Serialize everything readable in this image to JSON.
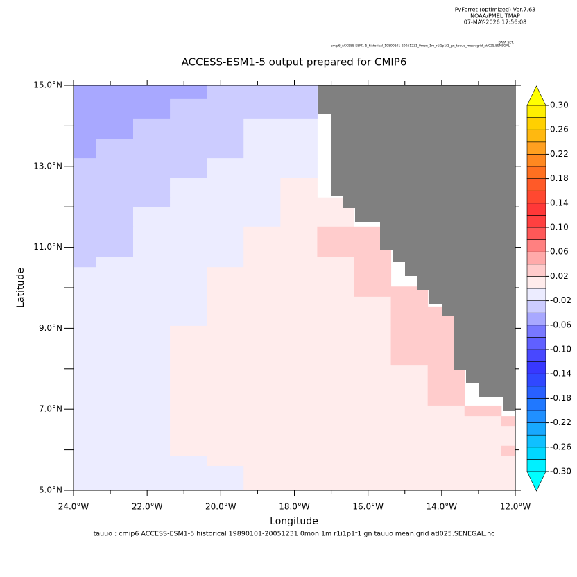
{
  "header": {
    "software": "PyFerret (optimized) Ver.7.63",
    "org": "NOAA/PMEL TMAP",
    "date": "07-MAY-2026 17:56:08",
    "dataset_label": "DATA SET:",
    "dataset": "cmip6_ACCESS-ESM1-5_historical_19890101-20051231_0mon_1m_r1i1p1f1_gn_tauuo_mean.grid_atl025.SENEGAL"
  },
  "chart_data": {
    "type": "heatmap",
    "title": "ACCESS-ESM1-5 output prepared for CMIP6",
    "xlabel": "Longitude",
    "ylabel": "Latitude",
    "footnote": "tauuo : cmip6 ACCESS-ESM1-5 historical 19890101-20051231 0mon 1m r1i1p1f1 gn tauuo mean.grid atl025.SENEGAL.nc",
    "xlim": [
      -24,
      -12
    ],
    "ylim": [
      5,
      15
    ],
    "xticks": [
      {
        "value": -24,
        "label": "24.0°W"
      },
      {
        "value": -22,
        "label": "22.0°W"
      },
      {
        "value": -20,
        "label": "20.0°W"
      },
      {
        "value": -18,
        "label": "18.0°W"
      },
      {
        "value": -16,
        "label": "16.0°W"
      },
      {
        "value": -14,
        "label": "14.0°W"
      },
      {
        "value": -12,
        "label": "12.0°W"
      }
    ],
    "xminor_ticks": [
      -23,
      -21,
      -19,
      -17,
      -15,
      -13
    ],
    "yticks": [
      {
        "value": 5,
        "label": "5.0°N"
      },
      {
        "value": 7,
        "label": "7.0°N"
      },
      {
        "value": 9,
        "label": "9.0°N"
      },
      {
        "value": 11,
        "label": "11.0°N"
      },
      {
        "value": 13,
        "label": "13.0°N"
      },
      {
        "value": 15,
        "label": "15.0°N"
      }
    ],
    "yminor_ticks": [
      6,
      8,
      10,
      12,
      14
    ],
    "x_edges": [
      -24,
      -23.38,
      -22.38,
      -21.38,
      -20.38,
      -19.38,
      -18.38,
      -17.38,
      -16.38,
      -15.38,
      -14.38,
      -13.38,
      -12.38,
      -12
    ],
    "y_edges": [
      15,
      14.66,
      14.18,
      13.68,
      13.2,
      12.71,
      12.23,
      11.99,
      11.51,
      10.77,
      10.51,
      10.03,
      9.78,
      9.54,
      9.06,
      8.08,
      7.09,
      6.83,
      6.59,
      6.1,
      5.84,
      5.6,
      5
    ],
    "values": [
      [
        -0.05,
        -0.05,
        -0.05,
        -0.05,
        -0.03,
        -0.03,
        -0.03,
        null,
        null,
        null,
        null,
        null,
        null
      ],
      [
        -0.05,
        -0.05,
        -0.05,
        -0.03,
        -0.03,
        -0.03,
        -0.03,
        null,
        null,
        null,
        null,
        null,
        null
      ],
      [
        -0.05,
        -0.05,
        -0.03,
        -0.03,
        -0.03,
        -0.01,
        -0.01,
        null,
        null,
        null,
        null,
        null,
        null
      ],
      [
        -0.05,
        -0.03,
        -0.03,
        -0.03,
        -0.03,
        -0.01,
        -0.01,
        null,
        null,
        null,
        null,
        null,
        null
      ],
      [
        -0.03,
        -0.03,
        -0.03,
        -0.03,
        -0.01,
        -0.01,
        -0.01,
        null,
        null,
        null,
        null,
        null,
        null
      ],
      [
        -0.03,
        -0.03,
        -0.03,
        -0.01,
        -0.01,
        -0.01,
        0.01,
        null,
        null,
        null,
        null,
        null,
        null
      ],
      [
        -0.03,
        -0.03,
        -0.03,
        -0.01,
        -0.01,
        -0.01,
        0.01,
        0.01,
        null,
        null,
        null,
        null,
        null
      ],
      [
        -0.03,
        -0.03,
        -0.01,
        -0.01,
        -0.01,
        -0.01,
        0.01,
        0.01,
        null,
        null,
        null,
        null,
        null
      ],
      [
        -0.03,
        -0.03,
        -0.01,
        -0.01,
        -0.01,
        0.01,
        0.01,
        0.03,
        0.03,
        null,
        null,
        null,
        null
      ],
      [
        -0.03,
        -0.01,
        -0.01,
        -0.01,
        -0.01,
        0.01,
        0.01,
        0.01,
        0.03,
        null,
        null,
        null,
        null
      ],
      [
        -0.01,
        -0.01,
        -0.01,
        -0.01,
        0.01,
        0.01,
        0.01,
        0.01,
        0.03,
        null,
        null,
        null,
        null
      ],
      [
        -0.01,
        -0.01,
        -0.01,
        -0.01,
        0.01,
        0.01,
        0.01,
        0.01,
        0.03,
        0.03,
        null,
        null,
        null
      ],
      [
        -0.01,
        -0.01,
        -0.01,
        -0.01,
        0.01,
        0.01,
        0.01,
        0.01,
        0.01,
        0.03,
        null,
        null,
        null
      ],
      [
        -0.01,
        -0.01,
        -0.01,
        -0.01,
        0.01,
        0.01,
        0.01,
        0.01,
        0.01,
        0.03,
        0.03,
        null,
        null
      ],
      [
        -0.01,
        -0.01,
        -0.01,
        0.01,
        0.01,
        0.01,
        0.01,
        0.01,
        0.01,
        0.03,
        0.03,
        null,
        null
      ],
      [
        -0.01,
        -0.01,
        -0.01,
        0.01,
        0.01,
        0.01,
        0.01,
        0.01,
        0.01,
        0.01,
        0.03,
        null,
        null
      ],
      [
        -0.01,
        -0.01,
        -0.01,
        0.01,
        0.01,
        0.01,
        0.01,
        0.01,
        0.01,
        0.01,
        0.01,
        0.03,
        null
      ],
      [
        -0.01,
        -0.01,
        -0.01,
        0.01,
        0.01,
        0.01,
        0.01,
        0.01,
        0.01,
        0.01,
        0.01,
        0.01,
        0.03
      ],
      [
        -0.01,
        -0.01,
        -0.01,
        0.01,
        0.01,
        0.01,
        0.01,
        0.01,
        0.01,
        0.01,
        0.01,
        0.01,
        0.01
      ],
      [
        -0.01,
        -0.01,
        -0.01,
        0.01,
        0.01,
        0.01,
        0.01,
        0.01,
        0.01,
        0.01,
        0.01,
        0.01,
        0.03
      ],
      [
        -0.01,
        -0.01,
        -0.01,
        -0.01,
        0.01,
        0.01,
        0.01,
        0.01,
        0.01,
        0.01,
        0.01,
        0.01,
        0.01
      ],
      [
        -0.01,
        -0.01,
        -0.01,
        -0.01,
        -0.01,
        0.01,
        0.01,
        0.01,
        0.01,
        0.01,
        0.01,
        0.01,
        0.01
      ]
    ],
    "land_color": "#808080",
    "colorbar": {
      "lim": [
        -0.3,
        0.3
      ],
      "colors": [
        "#00f0ff",
        "#00d8ff",
        "#10c0ff",
        "#18a8ff",
        "#2090ff",
        "#2078ff",
        "#2860ff",
        "#3048ff",
        "#3838ff",
        "#4848ff",
        "#6060ff",
        "#7878ff",
        "#a8a8ff",
        "#ccccff",
        "#ececff",
        "#ffecec",
        "#ffcccc",
        "#ffaaaa",
        "#ff8080",
        "#ff5858",
        "#ff4040",
        "#ff3838",
        "#ff4830",
        "#ff5a28",
        "#ff7020",
        "#ff8820",
        "#ffa020",
        "#ffb810",
        "#ffd000",
        "#ffee00"
      ],
      "under_color": "#00ffff",
      "over_color": "#ffff00",
      "ticks": [
        {
          "value": 0.3,
          "label": "0.30"
        },
        {
          "value": 0.26,
          "label": "0.26"
        },
        {
          "value": 0.22,
          "label": "0.22"
        },
        {
          "value": 0.18,
          "label": "0.18"
        },
        {
          "value": 0.14,
          "label": "0.14"
        },
        {
          "value": 0.1,
          "label": "0.10"
        },
        {
          "value": 0.06,
          "label": "0.06"
        },
        {
          "value": 0.02,
          "label": "0.02"
        },
        {
          "value": -0.02,
          "label": "-0.02"
        },
        {
          "value": -0.06,
          "label": "-0.06"
        },
        {
          "value": -0.1,
          "label": "-0.10"
        },
        {
          "value": -0.14,
          "label": "-0.14"
        },
        {
          "value": -0.18,
          "label": "-0.18"
        },
        {
          "value": -0.22,
          "label": "-0.22"
        },
        {
          "value": -0.26,
          "label": "-0.26"
        },
        {
          "value": -0.3,
          "label": "-0.30"
        }
      ]
    }
  }
}
